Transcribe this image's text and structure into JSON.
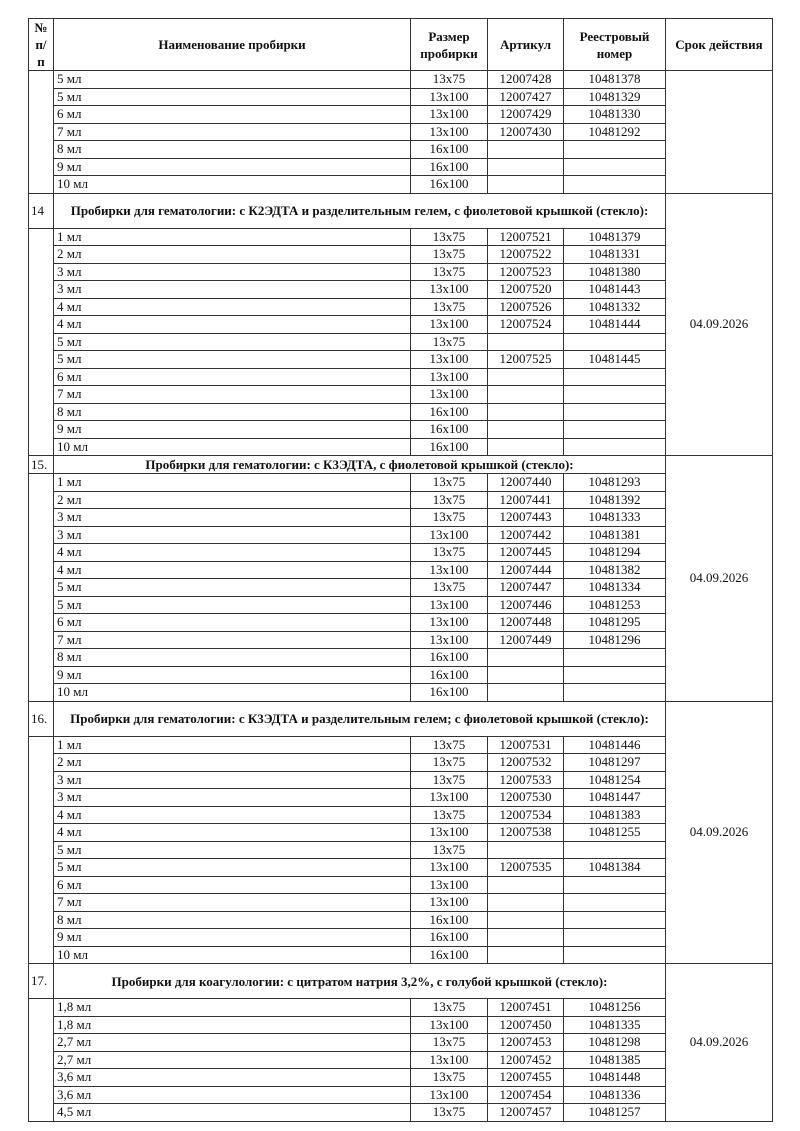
{
  "header": {
    "num": "№ п/п",
    "name": "Наименование пробирки",
    "size": "Размер пробирки",
    "article": "Артикул",
    "registry": "Реестровый номер",
    "validity": "Срок действия"
  },
  "sections": [
    {
      "num": "",
      "title": "",
      "date": "",
      "rows": [
        [
          "5 мл",
          "13x75",
          "12007428",
          "10481378"
        ],
        [
          "5 мл",
          "13x100",
          "12007427",
          "10481329"
        ],
        [
          "6 мл",
          "13x100",
          "12007429",
          "10481330"
        ],
        [
          "7 мл",
          "13x100",
          "12007430",
          "10481292"
        ],
        [
          "8 мл",
          "16x100",
          "",
          ""
        ],
        [
          "9 мл",
          "16x100",
          "",
          ""
        ],
        [
          "10 мл",
          "16x100",
          "",
          ""
        ]
      ]
    },
    {
      "num": "14",
      "title": "Пробирки для гематологии: с К2ЭДТА и разделительным гелем, с фиолетовой крышкой (стекло):",
      "date": "04.09.2026",
      "rows": [
        [
          "1 мл",
          "13x75",
          "12007521",
          "10481379"
        ],
        [
          "2 мл",
          "13x75",
          "12007522",
          "10481331"
        ],
        [
          "3 мл",
          "13x75",
          "12007523",
          "10481380"
        ],
        [
          "3 мл",
          "13x100",
          "12007520",
          "10481443"
        ],
        [
          "4 мл",
          "13x75",
          "12007526",
          "10481332"
        ],
        [
          "4 мл",
          "13x100",
          "12007524",
          "10481444"
        ],
        [
          "5 мл",
          "13x75",
          "",
          ""
        ],
        [
          "5 мл",
          "13x100",
          "12007525",
          "10481445"
        ],
        [
          "6 мл",
          "13x100",
          "",
          ""
        ],
        [
          "7 мл",
          "13x100",
          "",
          ""
        ],
        [
          "8 мл",
          "16x100",
          "",
          ""
        ],
        [
          "9 мл",
          "16x100",
          "",
          ""
        ],
        [
          "10 мл",
          "16x100",
          "",
          ""
        ]
      ]
    },
    {
      "num": "15.",
      "title": "Пробирки для гематологии: с К3ЭДТА, с фиолетовой крышкой (стекло):",
      "date": "04.09.2026",
      "rows": [
        [
          "1 мл",
          "13x75",
          "12007440",
          "10481293"
        ],
        [
          "2 мл",
          "13x75",
          "12007441",
          "10481392"
        ],
        [
          "3 мл",
          "13x75",
          "12007443",
          "10481333"
        ],
        [
          "3 мл",
          "13x100",
          "12007442",
          "10481381"
        ],
        [
          "4 мл",
          "13x75",
          "12007445",
          "10481294"
        ],
        [
          "4 мл",
          "13x100",
          "12007444",
          "10481382"
        ],
        [
          "5 мл",
          "13x75",
          "12007447",
          "10481334"
        ],
        [
          "5 мл",
          "13x100",
          "12007446",
          "10481253"
        ],
        [
          "6 мл",
          "13x100",
          "12007448",
          "10481295"
        ],
        [
          "7 мл",
          "13x100",
          "12007449",
          "10481296"
        ],
        [
          "8 мл",
          "16x100",
          "",
          ""
        ],
        [
          "9 мл",
          "16x100",
          "",
          ""
        ],
        [
          "10 мл",
          "16x100",
          "",
          ""
        ]
      ]
    },
    {
      "num": "16.",
      "title": "Пробирки для гематологии: с К3ЭДТА и разделительным гелем; с фиолетовой крышкой (стекло):",
      "date": "04.09.2026",
      "rows": [
        [
          "1 мл",
          "13x75",
          "12007531",
          "10481446"
        ],
        [
          "2 мл",
          "13x75",
          "12007532",
          "10481297"
        ],
        [
          "3 мл",
          "13x75",
          "12007533",
          "10481254"
        ],
        [
          "3 мл",
          "13x100",
          "12007530",
          "10481447"
        ],
        [
          "4 мл",
          "13x75",
          "12007534",
          "10481383"
        ],
        [
          "4 мл",
          "13x100",
          "12007538",
          "10481255"
        ],
        [
          "5 мл",
          "13x75",
          "",
          ""
        ],
        [
          "5 мл",
          "13x100",
          "12007535",
          "10481384"
        ],
        [
          "6 мл",
          "13x100",
          "",
          ""
        ],
        [
          "7 мл",
          "13x100",
          "",
          ""
        ],
        [
          "8 мл",
          "16x100",
          "",
          ""
        ],
        [
          "9 мл",
          "16x100",
          "",
          ""
        ],
        [
          "10 мл",
          "16x100",
          "",
          ""
        ]
      ]
    },
    {
      "num": "17.",
      "title": "Пробирки для коагулологии: с цитратом натрия 3,2%, с голубой крышкой (стекло):",
      "date": "04.09.2026",
      "rows": [
        [
          "1,8 мл",
          "13x75",
          "12007451",
          "10481256"
        ],
        [
          "1,8 мл",
          "13x100",
          "12007450",
          "10481335"
        ],
        [
          "2,7 мл",
          "13x75",
          "12007453",
          "10481298"
        ],
        [
          "2,7 мл",
          "13x100",
          "12007452",
          "10481385"
        ],
        [
          "3,6 мл",
          "13x75",
          "12007455",
          "10481448"
        ],
        [
          "3,6 мл",
          "13x100",
          "12007454",
          "10481336"
        ],
        [
          "4,5 мл",
          "13x75",
          "12007457",
          "10481257"
        ]
      ]
    }
  ]
}
